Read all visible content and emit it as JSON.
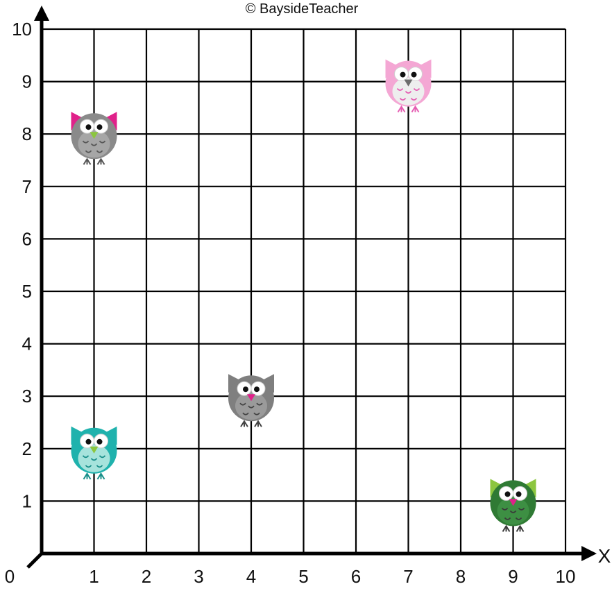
{
  "credit": "© BaysideTeacher",
  "chart_data": {
    "type": "scatter",
    "xlabel": "X",
    "ylabel": "",
    "origin_label": "0",
    "xlim": [
      0,
      10
    ],
    "ylim": [
      0,
      10
    ],
    "grid": true,
    "x_ticks": [
      "1",
      "2",
      "3",
      "4",
      "5",
      "6",
      "7",
      "8",
      "9",
      "10"
    ],
    "y_ticks": [
      "1",
      "2",
      "3",
      "4",
      "5",
      "6",
      "7",
      "8",
      "9",
      "10"
    ],
    "points": [
      {
        "x": 1,
        "y": 8,
        "icon": "owl-icon",
        "colors": {
          "body": "#8a8a8a",
          "ears": "#e0218a",
          "belly": "#a6a6a6",
          "beak": "#8cc63f",
          "feet": "#555555"
        }
      },
      {
        "x": 7,
        "y": 9,
        "icon": "owl-icon",
        "colors": {
          "body": "#f4a7d4",
          "ears": "#f4a7d4",
          "belly": "#eeeeee",
          "beak": "#6d6d6d",
          "feet": "#e55fb3"
        }
      },
      {
        "x": 4,
        "y": 3,
        "icon": "owl-icon",
        "colors": {
          "body": "#7f7f7f",
          "ears": "#7f7f7f",
          "belly": "#9a9a9a",
          "beak": "#e0218a",
          "feet": "#444444"
        }
      },
      {
        "x": 1,
        "y": 2,
        "icon": "owl-icon",
        "colors": {
          "body": "#1fb2ad",
          "ears": "#1fb2ad",
          "belly": "#a6e3dc",
          "beak": "#8cc63f",
          "feet": "#1a8f8a"
        }
      },
      {
        "x": 9,
        "y": 1,
        "icon": "owl-icon",
        "colors": {
          "body": "#2f7a34",
          "ears": "#8cc63f",
          "belly": "#3d8f43",
          "beak": "#e0218a",
          "feet": "#3a3a3a"
        }
      }
    ]
  }
}
